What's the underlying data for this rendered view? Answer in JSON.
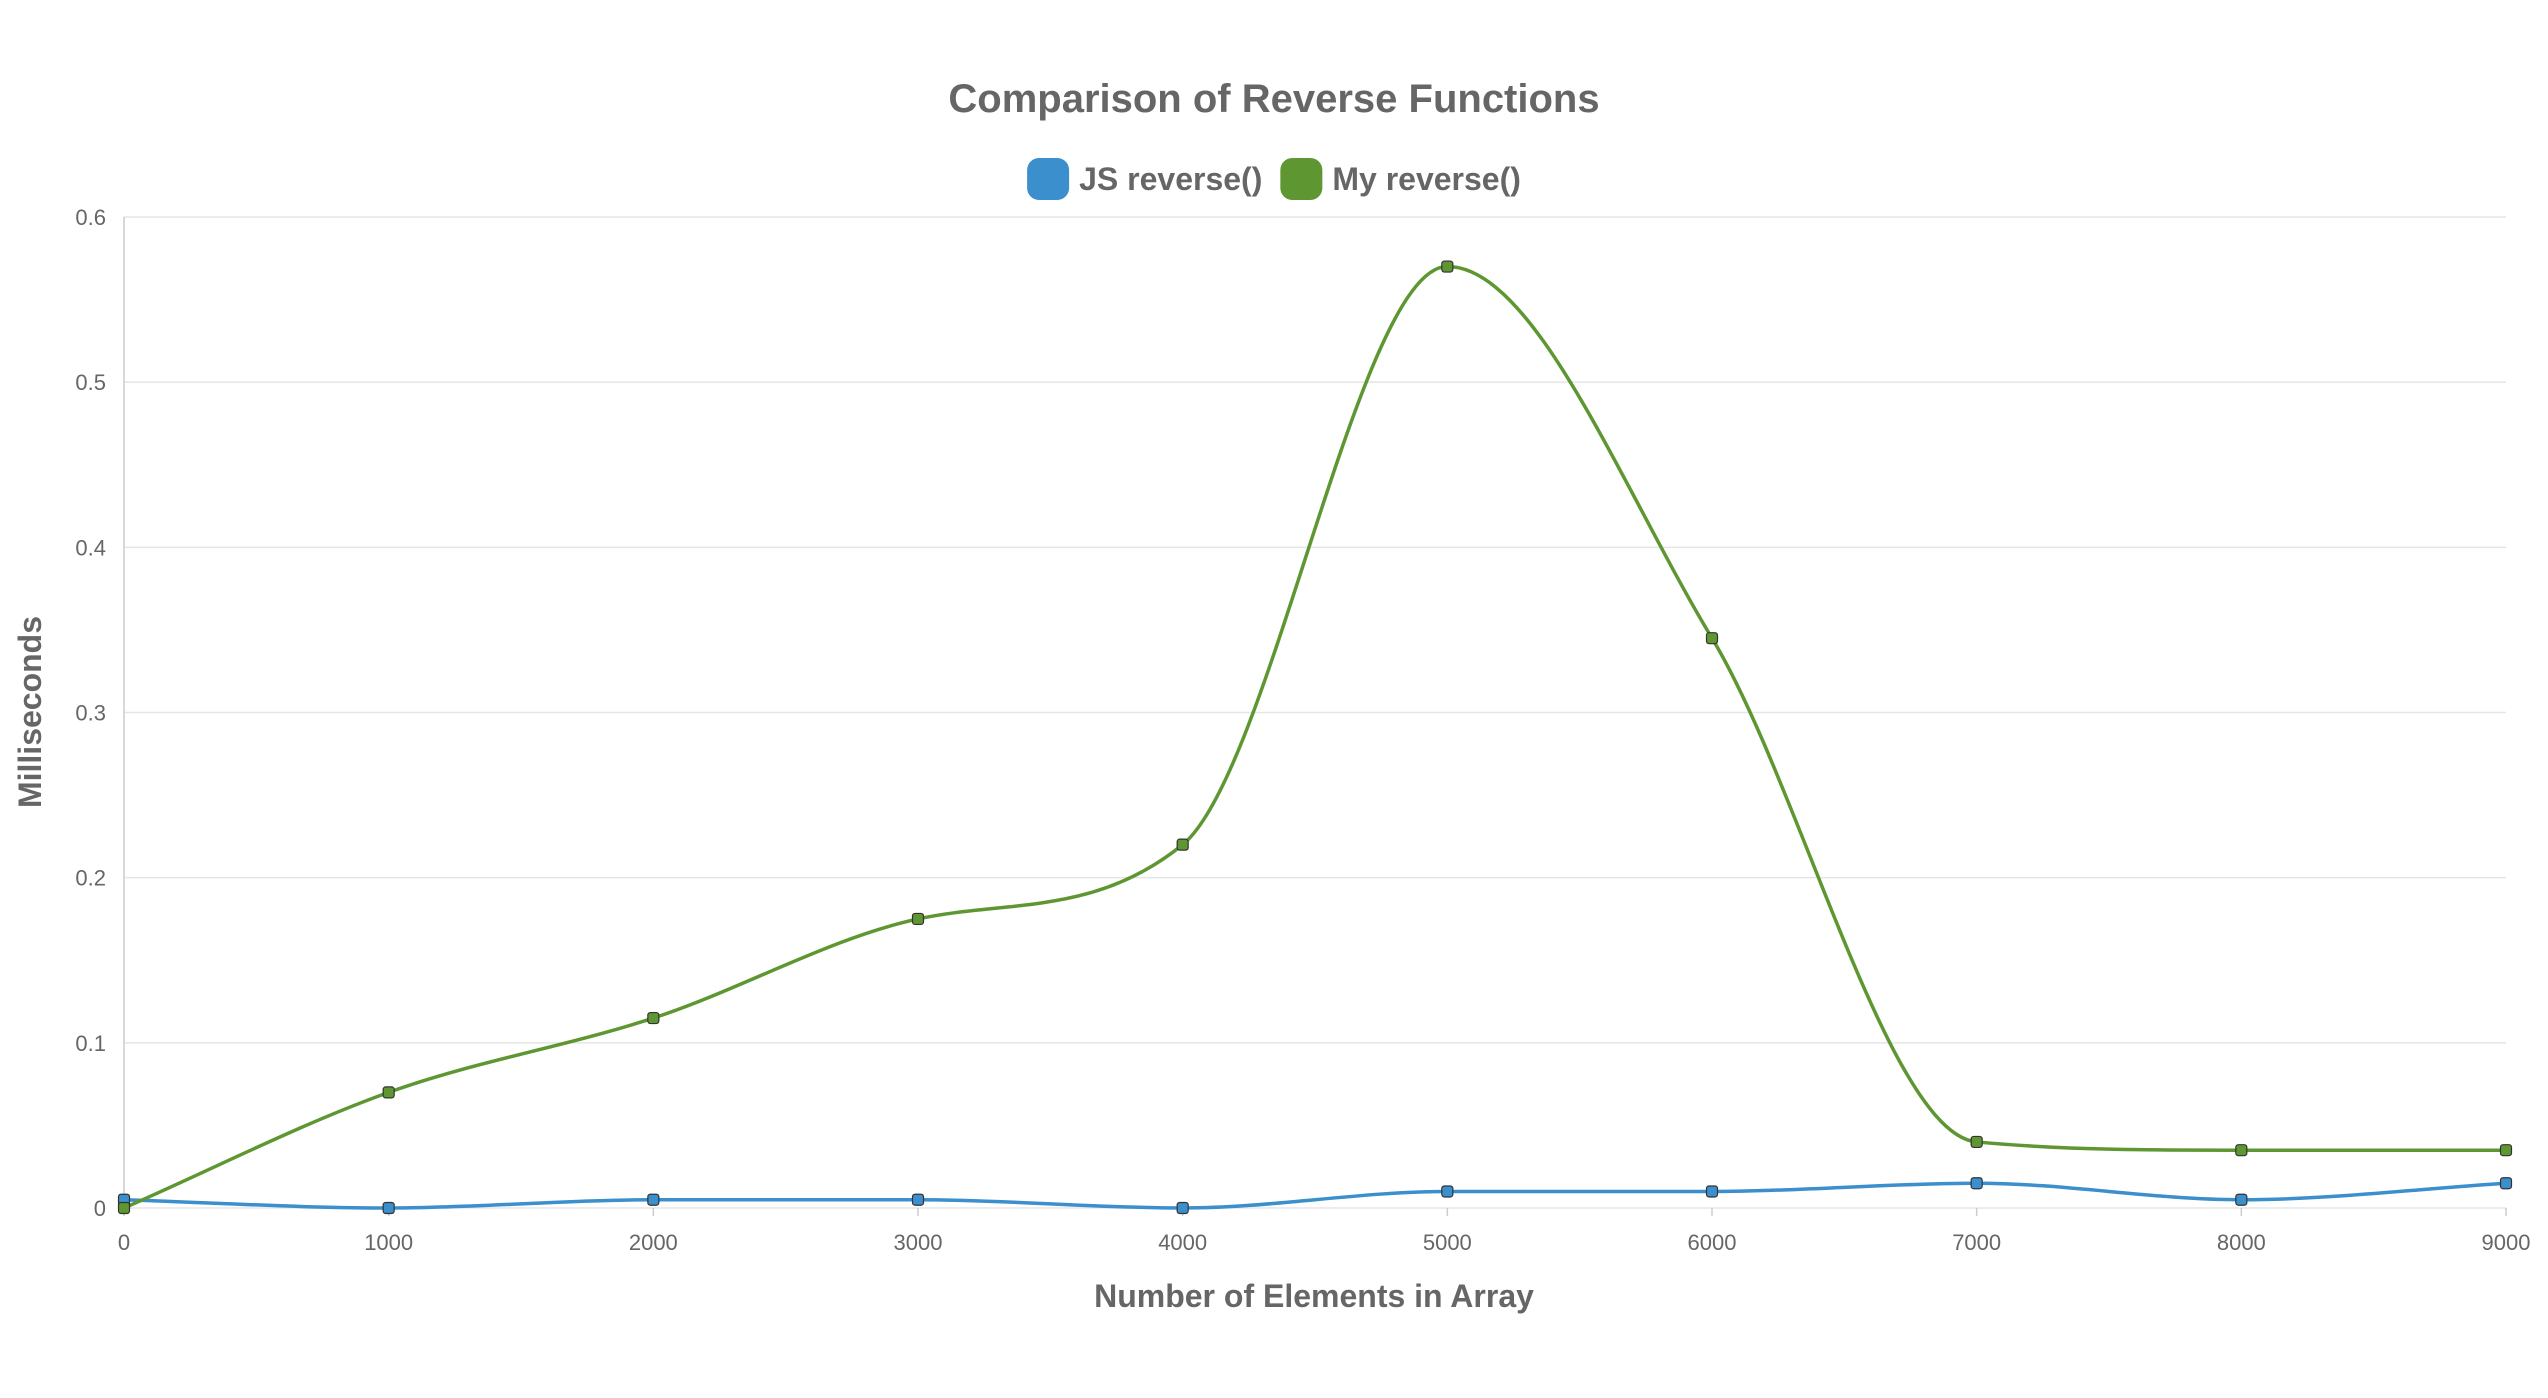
{
  "chart_data": {
    "type": "line",
    "title": "Comparison of Reverse Functions",
    "xlabel": "Number of Elements in Array",
    "ylabel": "Milliseconds",
    "x": [
      0,
      1000,
      2000,
      3000,
      4000,
      5000,
      6000,
      7000,
      8000,
      9000
    ],
    "x_tick_labels": [
      "0",
      "1000",
      "2000",
      "3000",
      "4000",
      "5000",
      "6000",
      "7000",
      "8000",
      "9000"
    ],
    "y_ticks": [
      0,
      0.1,
      0.2,
      0.3,
      0.4,
      0.5,
      0.6
    ],
    "y_tick_labels": [
      "0",
      "0.1",
      "0.2",
      "0.3",
      "0.4",
      "0.5",
      "0.6"
    ],
    "xlim": [
      0,
      9000
    ],
    "ylim": [
      0,
      0.6
    ],
    "grid": true,
    "legend_position": "top-center",
    "smooth": true,
    "series": [
      {
        "name": "JS reverse()",
        "color": "#3a8fcc",
        "values": [
          0.005,
          0.0,
          0.005,
          0.005,
          0.0,
          0.01,
          0.01,
          0.015,
          0.005,
          0.015
        ]
      },
      {
        "name": "My reverse()",
        "color": "#5e9732",
        "values": [
          0.0,
          0.07,
          0.115,
          0.175,
          0.22,
          0.57,
          0.345,
          0.04,
          0.035,
          0.035
        ]
      }
    ]
  }
}
